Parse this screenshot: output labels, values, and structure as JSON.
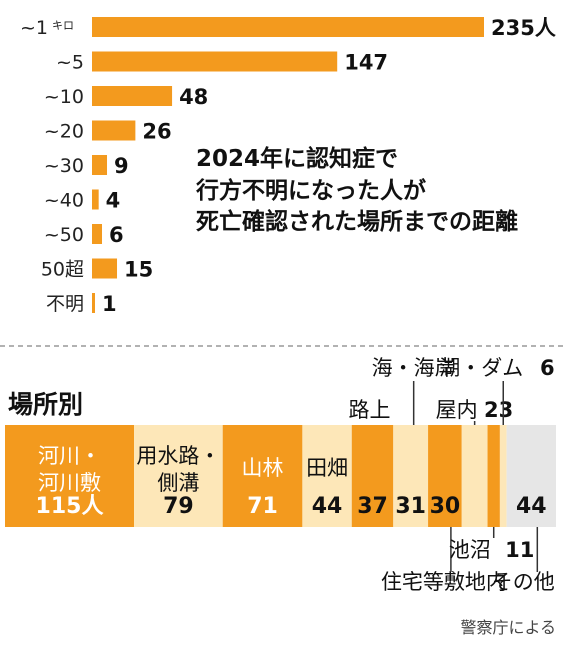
{
  "chart_data": [
    {
      "type": "bar",
      "orientation": "horizontal",
      "title": "2024年に認知症で\n行方不明になった人が\n死亡確認された場所までの距離",
      "categories": [
        "~1",
        "~5",
        "~10",
        "~20",
        "~30",
        "~40",
        "~50",
        "50超",
        "不明"
      ],
      "first_category_unit": "キロ",
      "values": [
        235,
        147,
        48,
        26,
        9,
        4,
        6,
        15,
        1
      ],
      "value_labels": [
        "235人",
        "147",
        "48",
        "26",
        "9",
        "4",
        "6",
        "15",
        "1"
      ],
      "xlim": [
        0,
        235
      ],
      "color": "#f39a1e",
      "grid": false
    },
    {
      "type": "bar",
      "orientation": "horizontal-stacked",
      "title": "場所別",
      "segments": [
        {
          "label": "河川・\n河川敷",
          "value": 115,
          "value_label": "115人",
          "color": "#f39a1e"
        },
        {
          "label": "用水路・\n側溝",
          "value": 79,
          "value_label": "79",
          "color": "#fde7b8"
        },
        {
          "label": "山林",
          "value": 71,
          "value_label": "71",
          "color": "#f39a1e"
        },
        {
          "label": "田畑",
          "value": 44,
          "value_label": "44",
          "color": "#fde7b8"
        },
        {
          "label": "路上",
          "value": 37,
          "value_label": "37",
          "color": "#f39a1e"
        },
        {
          "label": "海・海岸",
          "value": 31,
          "value_label": "31",
          "color": "#fde7b8"
        },
        {
          "label": "住宅等敷地内",
          "value": 30,
          "value_label": "30",
          "color": "#f39a1e"
        },
        {
          "label": "屋内",
          "value": 23,
          "value_label": "23",
          "color": "#fde7b8"
        },
        {
          "label": "池沼",
          "value": 11,
          "value_label": "11",
          "color": "#f39a1e"
        },
        {
          "label": "湖・ダム",
          "value": 6,
          "value_label": "6",
          "color": "#fde7b8"
        },
        {
          "label": "その他",
          "value": 44,
          "value_label": "44",
          "color": "#e6e6e6"
        }
      ]
    }
  ],
  "source": "警察庁による"
}
